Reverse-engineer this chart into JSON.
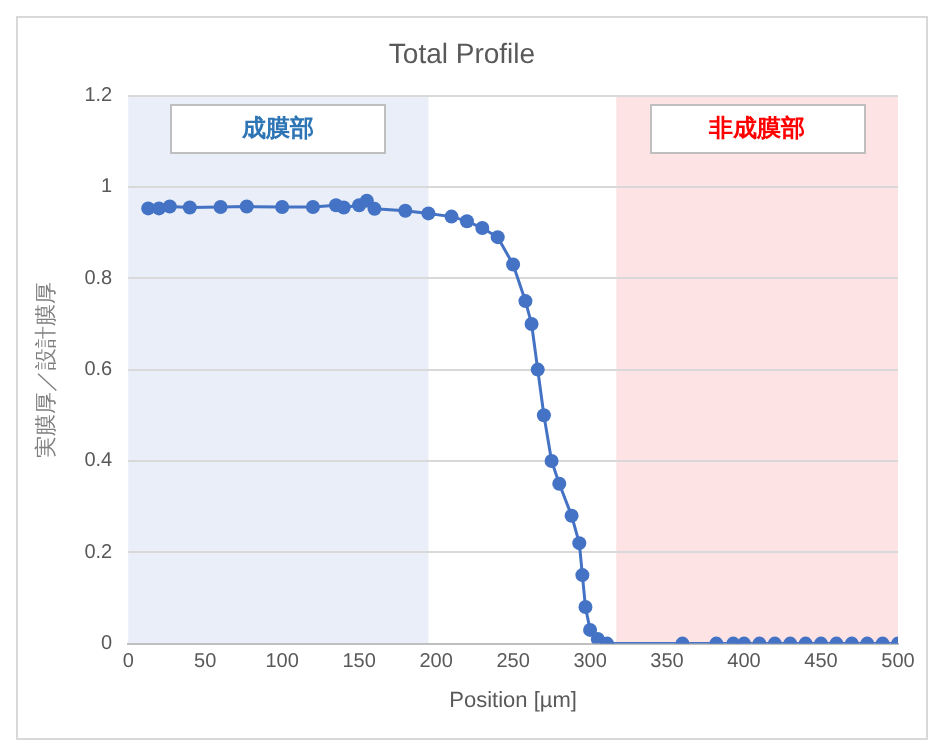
{
  "chart_data": {
    "type": "line",
    "title": "Total Profile",
    "xlabel": "Position [µm]",
    "ylabel": "実膜厚／設計膜厚",
    "xlim": [
      0,
      500
    ],
    "xticks": [
      0,
      50,
      100,
      150,
      200,
      250,
      300,
      350,
      400,
      450,
      500
    ],
    "ylim": [
      0,
      1.2
    ],
    "yticks": [
      0,
      0.2,
      0.4,
      0.6,
      0.8,
      1,
      1.2
    ],
    "grid": "y",
    "marker": "circle",
    "line_style": "solid",
    "legend": false,
    "bands": [
      {
        "axis": "x",
        "from": 0,
        "to": 195,
        "label": "成膜部",
        "color": "#e9eef8"
      },
      {
        "axis": "x",
        "from": 317,
        "to": 500,
        "label": "非成膜部",
        "color": "#fde3e4"
      }
    ],
    "series": [
      {
        "color": "#4472c4",
        "x": [
          13,
          20,
          27,
          40,
          60,
          77,
          100,
          120,
          135,
          140,
          150,
          155,
          160,
          180,
          195,
          210,
          220,
          230,
          240,
          250,
          258,
          262,
          266,
          270,
          275,
          280,
          288,
          293,
          295,
          297,
          300,
          305,
          311,
          360,
          382,
          393,
          400,
          410,
          420,
          430,
          440,
          450,
          460,
          470,
          480,
          490,
          500
        ],
        "values": [
          0.953,
          0.953,
          0.957,
          0.955,
          0.956,
          0.957,
          0.956,
          0.956,
          0.96,
          0.955,
          0.96,
          0.97,
          0.952,
          0.948,
          0.942,
          0.935,
          0.925,
          0.91,
          0.89,
          0.83,
          0.75,
          0.7,
          0.6,
          0.5,
          0.4,
          0.35,
          0.28,
          0.22,
          0.15,
          0.08,
          0.03,
          0.01,
          0,
          0,
          0,
          0,
          0,
          0,
          0,
          0,
          0,
          0,
          0,
          0,
          0,
          0,
          0
        ]
      }
    ]
  }
}
